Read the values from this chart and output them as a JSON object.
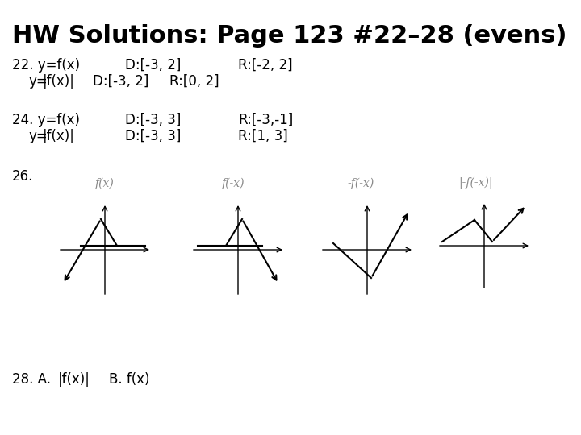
{
  "title": "HW Solutions: Page 123 #22–28 (evens)",
  "title_fontsize": 22,
  "title_fontweight": "bold",
  "background_color": "#ffffff",
  "text_color": "#000000",
  "line22a": "22. y=f(x)          D:[-3, 2]          R:[-2, 2]",
  "line22b": "      y=|f(x)|  D:[-3, 2]    R:[0, 2]",
  "line24a": "24. y=f(x)          D:[-3, 3]          R:[-3,-1]",
  "line24b": "      y=|f(x)|        D:[-3, 3]          R:[1, 3]",
  "line26": "26.",
  "line28": "28. A.  |f(x)|    B. f(x)",
  "text_fontsize": 12,
  "label_color": "#888888",
  "label_fontsize": 9
}
